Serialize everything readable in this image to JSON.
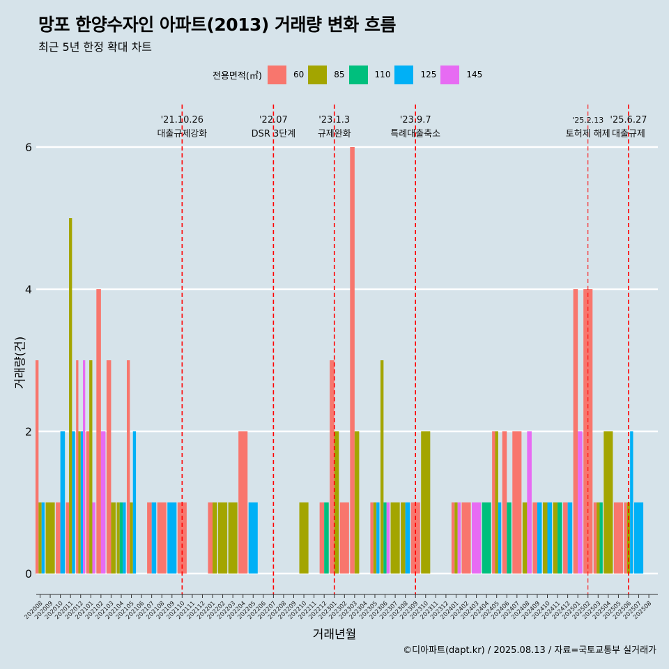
{
  "header": {
    "title": "망포 한양수자인 아파트(2013) 거래량 변화 흐름",
    "subtitle": "최근 5년 한정 확대 차트"
  },
  "legend": {
    "title": "전용면적(㎡)",
    "items": [
      {
        "label": "60",
        "color": "#f8766d"
      },
      {
        "label": "85",
        "color": "#a3a500"
      },
      {
        "label": "110",
        "color": "#00bf7d"
      },
      {
        "label": "125",
        "color": "#00b0f6"
      },
      {
        "label": "145",
        "color": "#e76bf3"
      }
    ]
  },
  "axes": {
    "xlabel": "거래년월",
    "ylabel": "거래량(건)"
  },
  "caption": "©디아파트(dapt.kr) / 2025.08.13 / 자료=국토교통부 실거래가",
  "chart_data": {
    "type": "bar",
    "ylim": [
      -0.25,
      6.8
    ],
    "yticks": [
      0,
      2,
      4,
      6
    ],
    "months": [
      "202008",
      "202009",
      "202010",
      "202011",
      "202012",
      "202101",
      "202102",
      "202103",
      "202104",
      "202105",
      "202106",
      "202107",
      "202108",
      "202109",
      "202110",
      "202111",
      "202112",
      "202201",
      "202202",
      "202203",
      "202204",
      "202205",
      "202206",
      "202207",
      "202208",
      "202209",
      "202210",
      "202211",
      "202212",
      "202301",
      "202302",
      "202303",
      "202304",
      "202305",
      "202306",
      "202307",
      "202308",
      "202309",
      "202310",
      "202311",
      "202312",
      "202401",
      "202402",
      "202403",
      "202404",
      "202405",
      "202406",
      "202407",
      "202408",
      "202409",
      "202410",
      "202411",
      "202412",
      "202501",
      "202502",
      "202503",
      "202504",
      "202505",
      "202506",
      "202507",
      "202508"
    ],
    "month_labels": [
      "202008",
      "202009",
      "202010",
      "202011",
      "202012",
      "202101",
      "202102",
      "202103",
      "202104",
      "202105",
      "202106",
      "202107",
      "202108",
      "202109",
      "202110",
      "202111",
      "202112",
      "202201",
      "202202",
      "202203",
      "202204",
      "202205",
      "202206",
      "202207",
      "202208",
      "202209",
      "202210",
      "202211",
      "202212",
      "202301",
      "202302",
      "202303",
      "202304",
      "202305",
      "202306",
      "202307",
      "202308",
      "202309",
      "202310",
      "202311",
      "202312",
      "202401",
      "202402",
      "202403",
      "202404",
      "202405",
      "202406",
      "202407",
      "202408",
      "202409",
      "202410",
      "202411",
      "202412",
      "202501",
      "202502",
      "202503",
      "202504",
      "202505",
      "202506",
      "202507",
      "202508"
    ],
    "series_order": [
      "60",
      "85",
      "110",
      "125",
      "145"
    ],
    "data": {
      "202008": {
        "60": 3,
        "85": 1,
        "125": 1
      },
      "202009": {
        "85": 1
      },
      "202010": {
        "60": 1,
        "125": 2
      },
      "202011": {
        "60": 1,
        "85": 5,
        "125": 2
      },
      "202012": {
        "60": 3,
        "85": 2,
        "125": 2,
        "145": 3
      },
      "202101": {
        "60": 2,
        "85": 3,
        "145": 1
      },
      "202102": {
        "60": 4,
        "145": 2
      },
      "202103": {
        "60": 3,
        "85": 1
      },
      "202104": {
        "85": 1,
        "110": 1,
        "125": 1
      },
      "202105": {
        "60": 3,
        "85": 1,
        "125": 2
      },
      "202107": {
        "60": 1,
        "125": 1
      },
      "202108": {
        "60": 1
      },
      "202109": {
        "125": 1
      },
      "202110": {
        "60": 1
      },
      "202201": {
        "60": 1,
        "85": 1
      },
      "202202": {
        "85": 1
      },
      "202203": {
        "85": 1
      },
      "202204": {
        "60": 2
      },
      "202205": {
        "125": 1
      },
      "202210": {
        "85": 1
      },
      "202212": {
        "60": 1,
        "110": 1
      },
      "202301": {
        "60": 3,
        "85": 2
      },
      "202302": {
        "60": 1
      },
      "202303": {
        "60": 6,
        "85": 2
      },
      "202305": {
        "60": 1,
        "85": 1,
        "125": 1
      },
      "202306": {
        "85": 3,
        "110": 1,
        "145": 1
      },
      "202307": {
        "85": 1
      },
      "202308": {
        "85": 1,
        "125": 1
      },
      "202309": {
        "60": 1
      },
      "202310": {
        "85": 2
      },
      "202401": {
        "60": 1,
        "85": 1,
        "145": 1
      },
      "202402": {
        "60": 1
      },
      "202403": {
        "145": 1
      },
      "202404": {
        "110": 1
      },
      "202405": {
        "60": 2,
        "85": 2,
        "125": 1
      },
      "202406": {
        "60": 2,
        "110": 1
      },
      "202407": {
        "60": 2
      },
      "202408": {
        "85": 1,
        "145": 2
      },
      "202409": {
        "60": 1,
        "125": 1
      },
      "202410": {
        "85": 1,
        "125": 1
      },
      "202411": {
        "85": 1,
        "110": 1
      },
      "202412": {
        "60": 1,
        "125": 1
      },
      "202501": {
        "60": 4,
        "145": 2
      },
      "202502": {
        "60": 4
      },
      "202503": {
        "60": 1,
        "85": 1,
        "110": 1
      },
      "202504": {
        "85": 2
      },
      "202505": {
        "60": 1
      },
      "202506": {
        "60": 1,
        "85": 1,
        "125": 2
      },
      "202507": {
        "125": 1
      }
    },
    "events": [
      {
        "month": "202110",
        "date": "'21.10.26",
        "label": "대출규제강화"
      },
      {
        "month": "202207",
        "date": "'22.07",
        "label": "DSR 3단계"
      },
      {
        "month": "202301",
        "date": "'23.1.3",
        "label": "규제완화"
      },
      {
        "month": "202309",
        "date": "'23.9.7",
        "label": "특례대출축소"
      },
      {
        "month": "202502",
        "date": "'25.2.13",
        "label": "토허제 해제",
        "thin": true
      },
      {
        "month": "202506",
        "date": "'25.6.27",
        "label": "대출규제"
      }
    ]
  }
}
